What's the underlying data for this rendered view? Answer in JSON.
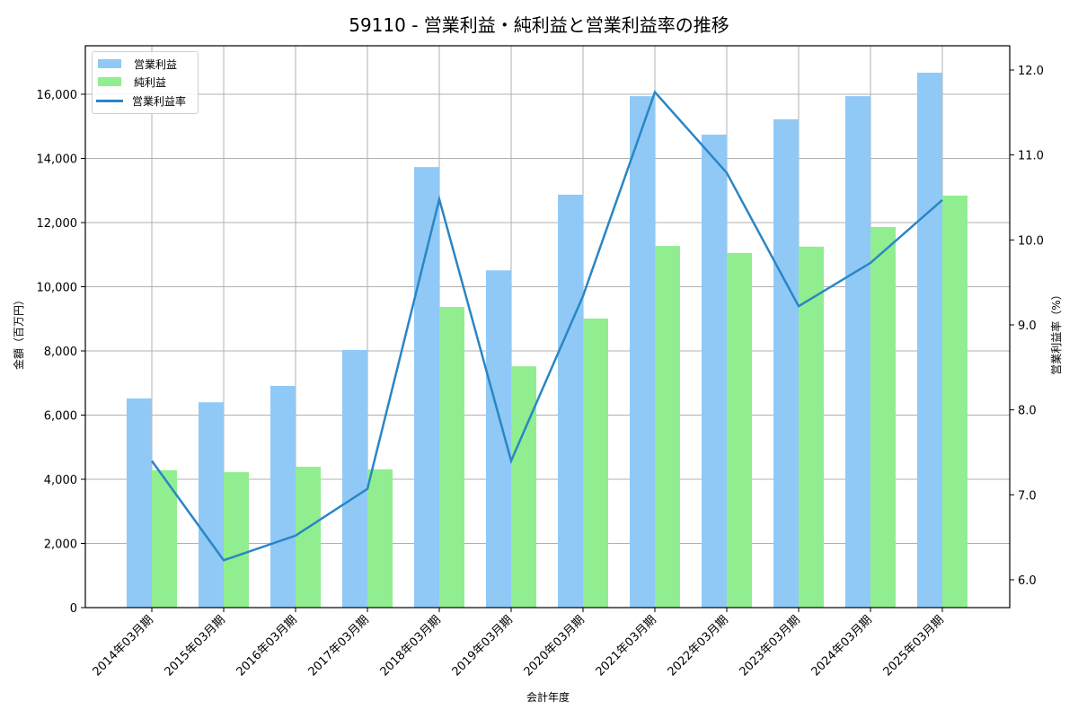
{
  "title": "59110 - 営業利益・純利益と営業利益率の推移",
  "legend": {
    "items": [
      {
        "label": "営業利益",
        "type": "bar",
        "color": "#90c9f6"
      },
      {
        "label": "純利益",
        "type": "bar",
        "color": "#90ee90"
      },
      {
        "label": "営業利益率",
        "type": "line",
        "color": "#2a86c4"
      }
    ]
  },
  "axes": {
    "xlabel": "会計年度",
    "ylabel_left": "金額（百万円）",
    "ylabel_right": "営業利益率（%）",
    "left_ticks": [
      "0",
      "2,000",
      "4,000",
      "6,000",
      "8,000",
      "10,000",
      "12,000",
      "14,000",
      "16,000"
    ],
    "right_ticks": [
      "6.0",
      "7.0",
      "8.0",
      "9.0",
      "10.0",
      "11.0",
      "12.0"
    ]
  },
  "chart_data": {
    "type": "bar",
    "title": "59110 - 営業利益・純利益と営業利益率の推移",
    "xlabel": "会計年度",
    "ylabel": "金額（百万円）",
    "ylabel_right": "営業利益率（%）",
    "categories": [
      "2014年03月期",
      "2015年03月期",
      "2016年03月期",
      "2017年03月期",
      "2018年03月期",
      "2019年03月期",
      "2020年03月期",
      "2021年03月期",
      "2022年03月期",
      "2023年03月期",
      "2024年03月期",
      "2025年03月期"
    ],
    "series": [
      {
        "name": "営業利益",
        "type": "bar",
        "axis": "left",
        "color": "#90c9f6",
        "values": [
          6520,
          6400,
          6910,
          8030,
          13730,
          10510,
          12870,
          15940,
          14740,
          15220,
          15940,
          16670
        ]
      },
      {
        "name": "純利益",
        "type": "bar",
        "axis": "left",
        "color": "#90ee90",
        "values": [
          4280,
          4220,
          4390,
          4310,
          9370,
          7520,
          9010,
          11270,
          11050,
          11250,
          11860,
          12840
        ]
      },
      {
        "name": "営業利益率",
        "type": "line",
        "axis": "right",
        "color": "#2a86c4",
        "values": [
          7.4,
          6.23,
          6.52,
          7.07,
          10.48,
          7.4,
          9.34,
          11.74,
          10.79,
          9.22,
          9.73,
          10.47
        ]
      }
    ],
    "ylim": [
      0,
      17500
    ],
    "ylim_right": [
      5.67,
      12.27
    ],
    "grid": true,
    "legend_position": "upper left"
  }
}
